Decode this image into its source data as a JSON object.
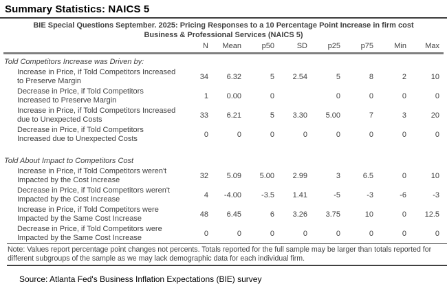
{
  "page": {
    "title": "Summary Statistics: NAICS 5",
    "source": "Source: Atlanta Fed's Business Inflation Expectations (BIE) survey"
  },
  "table": {
    "title_line1": "BIE Special Questions September. 2025: Pricing Responses to a 10 Percentage Point Increase in firm cost",
    "title_line2": "Business & Professional Services (NAICS 5)",
    "columns": [
      "N",
      "Mean",
      "p50",
      "SD",
      "p25",
      "p75",
      "Min",
      "Max"
    ],
    "sections": [
      {
        "header": "Told Competitors Increase was Driven by:",
        "rows": [
          {
            "label": "Increase in Price, if Told Competitors Increased to Preserve Margin",
            "values": [
              "34",
              "6.32",
              "5",
              "2.54",
              "5",
              "8",
              "2",
              "10"
            ]
          },
          {
            "label": "Decrease in Price, if Told Competitors Increased to Preserve Margin",
            "values": [
              "1",
              "0.00",
              "0",
              "",
              "0",
              "0",
              "0",
              "0"
            ]
          },
          {
            "label": "Increase in Price, if Told Competitors Increased due to Unexpected Costs",
            "values": [
              "33",
              "6.21",
              "5",
              "3.30",
              "5.00",
              "7",
              "3",
              "20"
            ]
          },
          {
            "label": "Decrease in Price, if Told Competitors Increased due to Unexpected Costs",
            "values": [
              "0",
              "0",
              "0",
              "0",
              "0",
              "0",
              "0",
              "0"
            ]
          }
        ]
      },
      {
        "header": "Told About Impact to Competitors Cost",
        "rows": [
          {
            "label": "Increase in Price, if Told Competitors weren't Impacted by the Cost Increase",
            "values": [
              "32",
              "5.09",
              "5.00",
              "2.99",
              "3",
              "6.5",
              "0",
              "10"
            ]
          },
          {
            "label": "Decrease in Price, if Told Competitors weren't Impacted by the Cost Increase",
            "values": [
              "4",
              "-4.00",
              "-3.5",
              "1.41",
              "-5",
              "-3",
              "-6",
              "-3"
            ]
          },
          {
            "label": "Increase in Price, if Told Competitors were Impacted by the Same Cost Increase",
            "values": [
              "48",
              "6.45",
              "6",
              "3.26",
              "3.75",
              "10",
              "0",
              "12.5"
            ]
          },
          {
            "label": "Decrease in Price, if Told Competitors were Impacted by the Same Cost Increase",
            "values": [
              "0",
              "0",
              "0",
              "0",
              "0",
              "0",
              "0",
              "0"
            ]
          }
        ]
      }
    ],
    "note": "Note: Values report percentage point changes not percents. Totals reported for the full sample may be larger than totals reported for different subgroups of the sample as we may lack demographic data for each individual firm."
  }
}
